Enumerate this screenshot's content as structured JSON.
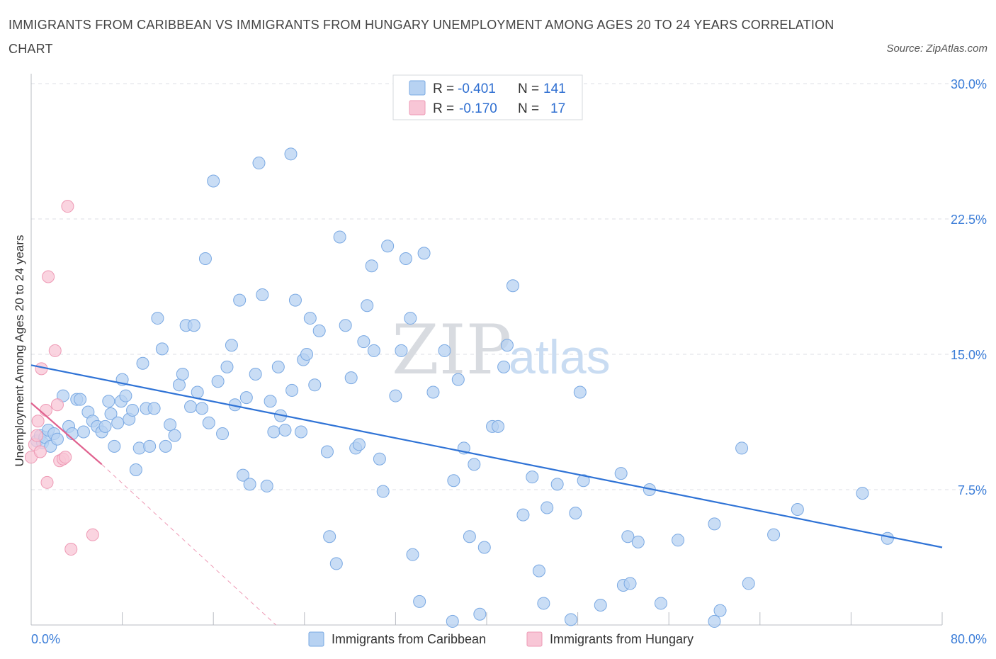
{
  "title": "IMMIGRANTS FROM CARIBBEAN VS IMMIGRANTS FROM HUNGARY UNEMPLOYMENT AMONG AGES 20 TO 24 YEARS CORRELATION CHART",
  "source": "Source: ZipAtlas.com",
  "watermark": {
    "zip": "ZIP",
    "atlas": "atlas"
  },
  "legend": {
    "rows": [
      {
        "r_label": "R =",
        "r_value": "-0.401",
        "n_label": "N =",
        "n_value": "141"
      },
      {
        "r_label": "R =",
        "r_value": "-0.170",
        "n_label": "N =",
        "n_value": "17"
      }
    ]
  },
  "colors": {
    "caribbean_fill": "#b7d2f2",
    "caribbean_stroke": "#7aa9e3",
    "caribbean_line": "#2f73d6",
    "hungary_fill": "#f8c6d6",
    "hungary_stroke": "#ee9ab5",
    "hungary_line": "#e0628f",
    "grid": "#dcdfe4",
    "tick_text": "#3b7dd8"
  },
  "chart_data": {
    "type": "scatter",
    "title": "IMMIGRANTS FROM CARIBBEAN VS IMMIGRANTS FROM HUNGARY UNEMPLOYMENT AMONG AGES 20 TO 24 YEARS CORRELATION CHART",
    "xlabel": "",
    "ylabel": "Unemployment Among Ages 20 to 24 years",
    "xlim": [
      0,
      80
    ],
    "ylim": [
      0,
      30
    ],
    "x_tick_labels": [
      "0.0%",
      "80.0%"
    ],
    "y_ticks": [
      7.5,
      15.0,
      22.5,
      30.0
    ],
    "y_tick_labels": [
      "7.5%",
      "15.0%",
      "22.5%",
      "30.0%"
    ],
    "grid": true,
    "legend_position": "top-center",
    "series": [
      {
        "name": "Immigrants from Caribbean",
        "R": -0.401,
        "N": 141,
        "trend": {
          "x": [
            0,
            80
          ],
          "y": [
            14.4,
            4.3
          ]
        },
        "points": [
          [
            0.5,
            10.2
          ],
          [
            0.8,
            10.5
          ],
          [
            1.0,
            10.1
          ],
          [
            1.2,
            10.4
          ],
          [
            1.5,
            10.8
          ],
          [
            1.7,
            9.9
          ],
          [
            2.0,
            10.6
          ],
          [
            2.3,
            10.3
          ],
          [
            2.8,
            12.7
          ],
          [
            3.3,
            11.0
          ],
          [
            3.6,
            10.6
          ],
          [
            4.0,
            12.5
          ],
          [
            4.3,
            12.5
          ],
          [
            4.6,
            10.7
          ],
          [
            5.0,
            11.8
          ],
          [
            5.4,
            11.3
          ],
          [
            5.8,
            11.0
          ],
          [
            6.2,
            10.7
          ],
          [
            6.5,
            11.0
          ],
          [
            6.8,
            12.4
          ],
          [
            7.0,
            11.7
          ],
          [
            7.3,
            9.9
          ],
          [
            7.6,
            11.2
          ],
          [
            7.9,
            12.4
          ],
          [
            8.0,
            13.6
          ],
          [
            8.3,
            12.7
          ],
          [
            8.6,
            11.4
          ],
          [
            8.9,
            11.9
          ],
          [
            9.2,
            8.6
          ],
          [
            9.5,
            9.8
          ],
          [
            9.8,
            14.5
          ],
          [
            10.1,
            12.0
          ],
          [
            10.4,
            9.9
          ],
          [
            10.8,
            12.0
          ],
          [
            11.1,
            17.0
          ],
          [
            11.5,
            15.3
          ],
          [
            11.8,
            9.9
          ],
          [
            12.2,
            11.1
          ],
          [
            12.6,
            10.5
          ],
          [
            13.0,
            13.3
          ],
          [
            13.3,
            13.9
          ],
          [
            13.6,
            16.6
          ],
          [
            14.0,
            12.1
          ],
          [
            14.3,
            16.6
          ],
          [
            14.6,
            12.9
          ],
          [
            15.0,
            12.0
          ],
          [
            15.3,
            20.3
          ],
          [
            15.6,
            11.2
          ],
          [
            16.0,
            24.6
          ],
          [
            16.4,
            13.5
          ],
          [
            16.8,
            10.6
          ],
          [
            17.2,
            14.3
          ],
          [
            17.6,
            15.5
          ],
          [
            17.9,
            12.2
          ],
          [
            18.3,
            18.0
          ],
          [
            18.6,
            8.3
          ],
          [
            18.9,
            12.6
          ],
          [
            19.2,
            7.8
          ],
          [
            19.7,
            13.9
          ],
          [
            20.0,
            25.6
          ],
          [
            20.3,
            18.3
          ],
          [
            20.7,
            7.7
          ],
          [
            21.0,
            12.4
          ],
          [
            21.3,
            10.7
          ],
          [
            21.7,
            14.3
          ],
          [
            21.9,
            11.6
          ],
          [
            22.3,
            10.8
          ],
          [
            22.8,
            26.1
          ],
          [
            22.9,
            13.0
          ],
          [
            23.2,
            18.0
          ],
          [
            23.7,
            10.7
          ],
          [
            23.9,
            14.7
          ],
          [
            24.2,
            15.0
          ],
          [
            24.5,
            17.0
          ],
          [
            24.9,
            13.3
          ],
          [
            25.3,
            16.3
          ],
          [
            26.0,
            9.6
          ],
          [
            26.2,
            4.9
          ],
          [
            26.8,
            3.4
          ],
          [
            27.1,
            21.5
          ],
          [
            27.6,
            16.6
          ],
          [
            28.1,
            13.7
          ],
          [
            28.5,
            9.8
          ],
          [
            28.8,
            10.0
          ],
          [
            29.2,
            15.7
          ],
          [
            29.5,
            17.7
          ],
          [
            29.9,
            19.9
          ],
          [
            30.1,
            15.2
          ],
          [
            30.6,
            9.2
          ],
          [
            30.9,
            7.4
          ],
          [
            31.3,
            21.0
          ],
          [
            32.0,
            12.7
          ],
          [
            32.5,
            15.2
          ],
          [
            32.9,
            20.3
          ],
          [
            33.3,
            17.0
          ],
          [
            33.5,
            3.9
          ],
          [
            34.1,
            1.3
          ],
          [
            34.5,
            20.6
          ],
          [
            35.3,
            12.9
          ],
          [
            36.3,
            15.2
          ],
          [
            37.1,
            8.0
          ],
          [
            37.5,
            13.6
          ],
          [
            38.0,
            9.8
          ],
          [
            38.5,
            4.9
          ],
          [
            38.9,
            8.9
          ],
          [
            39.4,
            0.6
          ],
          [
            39.8,
            4.3
          ],
          [
            40.5,
            11.0
          ],
          [
            41.0,
            11.0
          ],
          [
            41.5,
            14.3
          ],
          [
            41.8,
            15.5
          ],
          [
            42.3,
            18.8
          ],
          [
            43.2,
            6.1
          ],
          [
            44.0,
            8.2
          ],
          [
            45.0,
            1.2
          ],
          [
            45.3,
            6.5
          ],
          [
            46.2,
            7.8
          ],
          [
            47.8,
            6.2
          ],
          [
            48.2,
            12.9
          ],
          [
            48.5,
            8.0
          ],
          [
            50.0,
            1.1
          ],
          [
            51.8,
            8.4
          ],
          [
            52.0,
            2.2
          ],
          [
            52.4,
            4.9
          ],
          [
            52.6,
            2.3
          ],
          [
            53.3,
            4.6
          ],
          [
            54.3,
            7.5
          ],
          [
            55.3,
            1.2
          ],
          [
            56.8,
            4.7
          ],
          [
            60.0,
            5.6
          ],
          [
            60.5,
            0.8
          ],
          [
            62.4,
            9.8
          ],
          [
            63.0,
            2.3
          ],
          [
            65.2,
            5.0
          ],
          [
            67.3,
            6.4
          ],
          [
            73.0,
            7.3
          ],
          [
            75.2,
            4.8
          ],
          [
            60.0,
            0.2
          ],
          [
            47.4,
            0.3
          ],
          [
            37.0,
            0.2
          ],
          [
            44.6,
            3.0
          ]
        ]
      },
      {
        "name": "Immigrants from Hungary",
        "R": -0.17,
        "N": 17,
        "trend": {
          "x": [
            0,
            6.2
          ],
          "y": [
            12.3,
            8.9
          ]
        },
        "trend_extension": {
          "x": [
            6.2,
            21.5
          ],
          "y": [
            8.9,
            0.0
          ]
        },
        "points": [
          [
            0.0,
            9.3
          ],
          [
            0.3,
            10.0
          ],
          [
            0.5,
            10.5
          ],
          [
            0.6,
            11.3
          ],
          [
            0.8,
            9.6
          ],
          [
            0.9,
            14.2
          ],
          [
            1.3,
            11.9
          ],
          [
            1.4,
            7.9
          ],
          [
            1.5,
            19.3
          ],
          [
            2.1,
            15.2
          ],
          [
            2.3,
            12.2
          ],
          [
            2.5,
            9.1
          ],
          [
            2.8,
            9.2
          ],
          [
            3.2,
            23.2
          ],
          [
            3.5,
            4.2
          ],
          [
            5.4,
            5.0
          ],
          [
            3.0,
            9.3
          ]
        ]
      }
    ]
  },
  "bottom_legend": {
    "items": [
      {
        "label": "Immigrants from Caribbean"
      },
      {
        "label": "Immigrants from Hungary"
      }
    ]
  }
}
